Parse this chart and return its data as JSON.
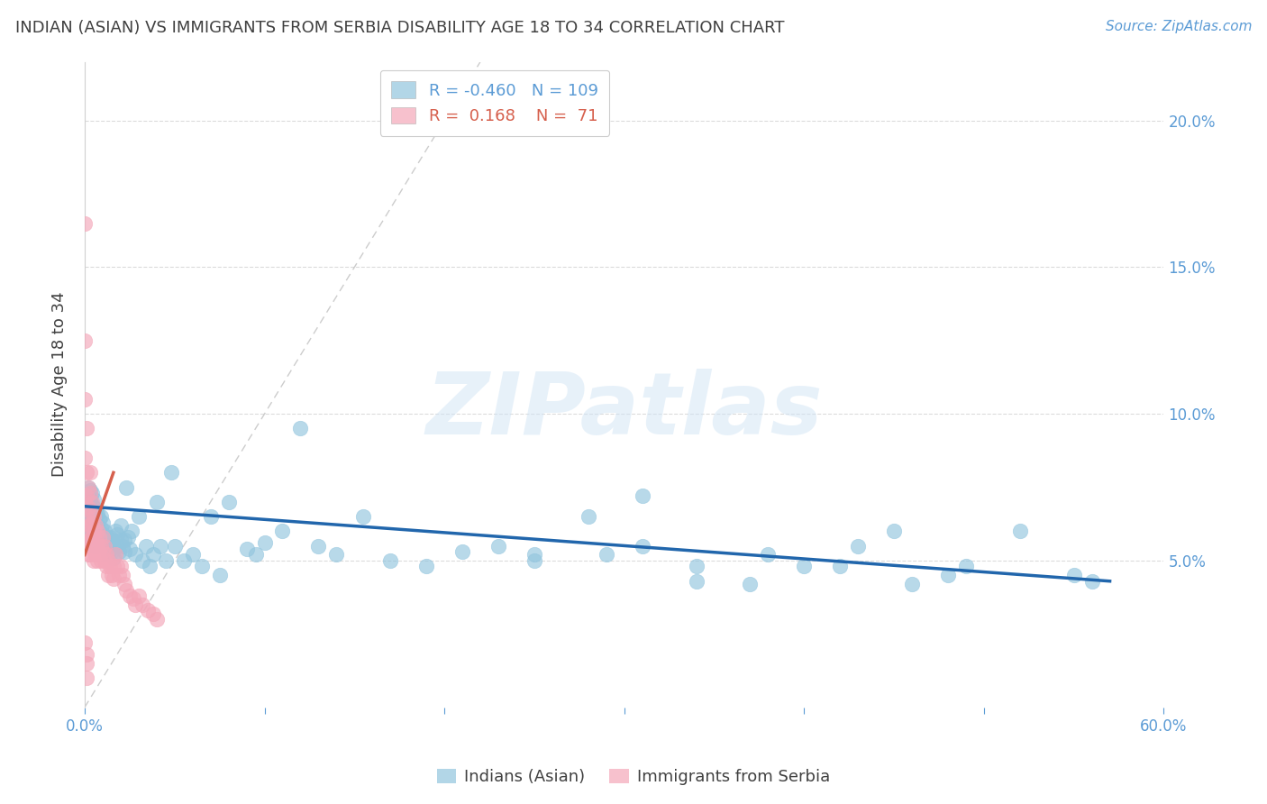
{
  "title": "INDIAN (ASIAN) VS IMMIGRANTS FROM SERBIA DISABILITY AGE 18 TO 34 CORRELATION CHART",
  "source": "Source: ZipAtlas.com",
  "ylabel": "Disability Age 18 to 34",
  "xlim": [
    0.0,
    0.6
  ],
  "ylim": [
    0.0,
    0.22
  ],
  "xticks": [
    0.0,
    0.1,
    0.2,
    0.3,
    0.4,
    0.5,
    0.6
  ],
  "xtick_labels_show": [
    "0.0%",
    "",
    "",
    "",
    "",
    "",
    "60.0%"
  ],
  "yticks_right": [
    0.05,
    0.1,
    0.15,
    0.2
  ],
  "ytick_labels_right": [
    "5.0%",
    "10.0%",
    "15.0%",
    "20.0%"
  ],
  "blue_color": "#92c5de",
  "pink_color": "#f4a7b9",
  "blue_line_color": "#2166ac",
  "pink_line_color": "#d6604d",
  "axis_color": "#5b9bd5",
  "grid_color": "#cccccc",
  "title_color": "#404040",
  "source_color": "#5b9bd5",
  "legend_blue_R": "-0.460",
  "legend_blue_N": "109",
  "legend_pink_R": "0.168",
  "legend_pink_N": "71",
  "watermark": "ZIPatlas",
  "legend1": "Indians (Asian)",
  "legend2": "Immigrants from Serbia",
  "blue_scatter_x": [
    0.001,
    0.001,
    0.002,
    0.002,
    0.002,
    0.003,
    0.003,
    0.003,
    0.003,
    0.003,
    0.004,
    0.004,
    0.004,
    0.004,
    0.005,
    0.005,
    0.005,
    0.005,
    0.005,
    0.006,
    0.006,
    0.006,
    0.006,
    0.007,
    0.007,
    0.007,
    0.008,
    0.008,
    0.008,
    0.009,
    0.009,
    0.009,
    0.01,
    0.01,
    0.01,
    0.011,
    0.011,
    0.012,
    0.012,
    0.013,
    0.013,
    0.014,
    0.014,
    0.015,
    0.015,
    0.016,
    0.016,
    0.017,
    0.018,
    0.018,
    0.019,
    0.02,
    0.02,
    0.021,
    0.022,
    0.022,
    0.023,
    0.024,
    0.025,
    0.026,
    0.028,
    0.03,
    0.032,
    0.034,
    0.036,
    0.038,
    0.04,
    0.042,
    0.045,
    0.048,
    0.05,
    0.055,
    0.06,
    0.065,
    0.07,
    0.075,
    0.08,
    0.09,
    0.095,
    0.1,
    0.11,
    0.12,
    0.13,
    0.14,
    0.155,
    0.17,
    0.19,
    0.21,
    0.23,
    0.25,
    0.28,
    0.31,
    0.34,
    0.37,
    0.4,
    0.43,
    0.46,
    0.49,
    0.52,
    0.55,
    0.31,
    0.25,
    0.38,
    0.42,
    0.34,
    0.29,
    0.45,
    0.48,
    0.56
  ],
  "blue_scatter_y": [
    0.067,
    0.072,
    0.062,
    0.068,
    0.075,
    0.058,
    0.063,
    0.068,
    0.071,
    0.074,
    0.06,
    0.065,
    0.069,
    0.073,
    0.057,
    0.061,
    0.064,
    0.068,
    0.071,
    0.055,
    0.059,
    0.063,
    0.067,
    0.058,
    0.062,
    0.066,
    0.056,
    0.06,
    0.064,
    0.057,
    0.061,
    0.065,
    0.055,
    0.059,
    0.063,
    0.056,
    0.06,
    0.054,
    0.058,
    0.052,
    0.056,
    0.054,
    0.058,
    0.053,
    0.057,
    0.051,
    0.055,
    0.06,
    0.055,
    0.059,
    0.053,
    0.057,
    0.062,
    0.055,
    0.053,
    0.057,
    0.075,
    0.058,
    0.054,
    0.06,
    0.052,
    0.065,
    0.05,
    0.055,
    0.048,
    0.052,
    0.07,
    0.055,
    0.05,
    0.08,
    0.055,
    0.05,
    0.052,
    0.048,
    0.065,
    0.045,
    0.07,
    0.054,
    0.052,
    0.056,
    0.06,
    0.095,
    0.055,
    0.052,
    0.065,
    0.05,
    0.048,
    0.053,
    0.055,
    0.052,
    0.065,
    0.055,
    0.048,
    0.042,
    0.048,
    0.055,
    0.042,
    0.048,
    0.06,
    0.045,
    0.072,
    0.05,
    0.052,
    0.048,
    0.043,
    0.052,
    0.06,
    0.045,
    0.043
  ],
  "pink_scatter_x": [
    0.0,
    0.0,
    0.0,
    0.0,
    0.001,
    0.001,
    0.001,
    0.001,
    0.001,
    0.001,
    0.002,
    0.002,
    0.002,
    0.002,
    0.002,
    0.003,
    0.003,
    0.003,
    0.003,
    0.003,
    0.003,
    0.004,
    0.004,
    0.004,
    0.004,
    0.005,
    0.005,
    0.005,
    0.005,
    0.006,
    0.006,
    0.006,
    0.007,
    0.007,
    0.007,
    0.008,
    0.008,
    0.009,
    0.009,
    0.01,
    0.01,
    0.011,
    0.011,
    0.012,
    0.012,
    0.013,
    0.013,
    0.014,
    0.015,
    0.016,
    0.016,
    0.017,
    0.018,
    0.019,
    0.02,
    0.021,
    0.022,
    0.023,
    0.025,
    0.027,
    0.028,
    0.03,
    0.032,
    0.035,
    0.038,
    0.04,
    0.0,
    0.0,
    0.001,
    0.001,
    0.001
  ],
  "pink_scatter_y": [
    0.125,
    0.105,
    0.085,
    0.07,
    0.095,
    0.08,
    0.072,
    0.065,
    0.06,
    0.055,
    0.075,
    0.068,
    0.062,
    0.057,
    0.052,
    0.08,
    0.073,
    0.067,
    0.062,
    0.057,
    0.052,
    0.07,
    0.063,
    0.058,
    0.054,
    0.065,
    0.06,
    0.055,
    0.05,
    0.062,
    0.057,
    0.052,
    0.06,
    0.055,
    0.05,
    0.058,
    0.053,
    0.055,
    0.05,
    0.058,
    0.053,
    0.055,
    0.05,
    0.052,
    0.048,
    0.05,
    0.045,
    0.048,
    0.045,
    0.048,
    0.044,
    0.052,
    0.048,
    0.045,
    0.048,
    0.045,
    0.042,
    0.04,
    0.038,
    0.037,
    0.035,
    0.038,
    0.035,
    0.033,
    0.032,
    0.03,
    0.165,
    0.022,
    0.018,
    0.015,
    0.01
  ]
}
